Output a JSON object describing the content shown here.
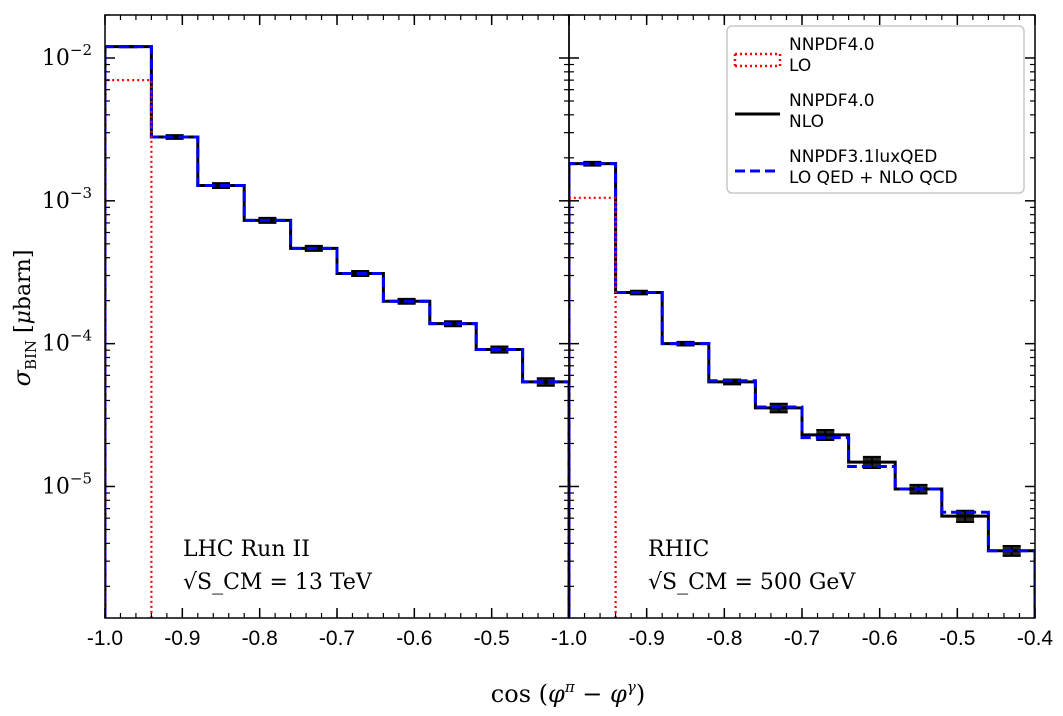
{
  "chart_data": {
    "type": "line",
    "xlabel": "cos(φ^π − φ^γ)",
    "ylabel": "σ_BIN [μbarn]",
    "yscale": "log",
    "ylim": [
      1.2e-06,
      0.02
    ],
    "grid": false,
    "legend_position": "top-right",
    "series_styles": {
      "LO": {
        "color": "#ff0000",
        "dash": "dotted"
      },
      "NLO": {
        "color": "#000000",
        "dash": "solid"
      },
      "LUX": {
        "color": "#0000ff",
        "dash": "dashed"
      }
    },
    "legend": [
      {
        "key": "LO",
        "line1": "NNPDF4.0",
        "line2": "LO"
      },
      {
        "key": "NLO",
        "line1": "NNPDF4.0",
        "line2": "NLO"
      },
      {
        "key": "LUX",
        "line1": "NNPDF3.1luxQED",
        "line2": "LO QED + NLO QCD"
      }
    ],
    "panels": [
      {
        "label_line1": "LHC Run II",
        "label_line2": "√S_CM = 13 TeV",
        "xlim": [
          -1.0,
          -0.4
        ],
        "x_ticks": [
          -1.0,
          -0.9,
          -0.8,
          -0.7,
          -0.6,
          -0.5
        ],
        "x_tick_labels": [
          "-1.0",
          "-0.9",
          "-0.8",
          "-0.7",
          "-0.6",
          "-0.5"
        ],
        "bin_edges": [
          -1.0,
          -0.94,
          -0.88,
          -0.82,
          -0.76,
          -0.7,
          -0.64,
          -0.58,
          -0.52,
          -0.46,
          -0.4
        ],
        "LO": [
          0.007,
          0,
          0,
          0,
          0,
          0,
          0,
          0,
          0,
          0
        ],
        "NLO": [
          0.012,
          0.0028,
          0.00128,
          0.00073,
          0.000465,
          0.00031,
          0.000198,
          0.000138,
          9.1e-05,
          5.4e-05
        ],
        "LUX": [
          0.012,
          0.0028,
          0.00128,
          0.00073,
          0.000465,
          0.00031,
          0.000198,
          0.000138,
          9.1e-05,
          5.4e-05
        ],
        "NLO_err": [
          0.01,
          0.03,
          0.04,
          0.04,
          0.04,
          0.04,
          0.04,
          0.04,
          0.05,
          0.06
        ]
      },
      {
        "label_line1": "RHIC",
        "label_line2": "√S_CM = 500 GeV",
        "xlim": [
          -1.0,
          -0.4
        ],
        "x_ticks": [
          -1.0,
          -0.9,
          -0.8,
          -0.7,
          -0.6,
          -0.5,
          -0.4
        ],
        "x_tick_labels": [
          "-1.0",
          "-0.9",
          "-0.8",
          "-0.7",
          "-0.6",
          "-0.5",
          "-0.4"
        ],
        "bin_edges": [
          -1.0,
          -0.94,
          -0.88,
          -0.82,
          -0.76,
          -0.7,
          -0.64,
          -0.58,
          -0.52,
          -0.46,
          -0.4
        ],
        "LO": [
          0.00105,
          0,
          0,
          0,
          0,
          0,
          0,
          0,
          0,
          0
        ],
        "NLO": [
          0.00182,
          0.000228,
          0.0001,
          5.4e-05,
          3.55e-05,
          2.3e-05,
          1.48e-05,
          9.6e-06,
          6.2e-06,
          3.55e-06
        ],
        "LUX": [
          0.00182,
          0.000228,
          0.0001,
          5.5e-05,
          3.6e-05,
          2.2e-05,
          1.38e-05,
          9.6e-06,
          6.6e-06,
          3.55e-06
        ],
        "NLO_err": [
          0.03,
          0.03,
          0.03,
          0.04,
          0.07,
          0.08,
          0.09,
          0.07,
          0.09,
          0.08
        ]
      }
    ],
    "y_tick_labels": [
      {
        "value": 0.01,
        "mantissa": "10",
        "exp": "−2"
      },
      {
        "value": 0.001,
        "mantissa": "10",
        "exp": "−3"
      },
      {
        "value": 0.0001,
        "mantissa": "10",
        "exp": "−4"
      },
      {
        "value": 1e-05,
        "mantissa": "10",
        "exp": "−5"
      }
    ]
  }
}
